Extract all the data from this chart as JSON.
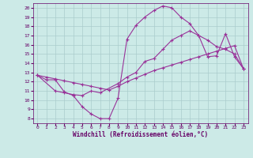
{
  "background_color": "#cceae7",
  "grid_color": "#aacccc",
  "line_color": "#993399",
  "xlabel": "Windchill (Refroidissement éolien,°C)",
  "xlim": [
    -0.5,
    23.5
  ],
  "ylim": [
    7.5,
    20.5
  ],
  "yticks": [
    8,
    9,
    10,
    11,
    12,
    13,
    14,
    15,
    16,
    17,
    18,
    19,
    20
  ],
  "xticks": [
    0,
    1,
    2,
    3,
    4,
    5,
    6,
    7,
    8,
    9,
    10,
    11,
    12,
    13,
    14,
    15,
    16,
    17,
    18,
    19,
    20,
    21,
    22,
    23
  ],
  "series1_x": [
    0,
    1,
    2,
    3,
    4,
    5,
    6,
    7,
    8,
    9,
    10,
    11,
    12,
    13,
    14,
    15,
    16,
    17,
    18,
    19,
    20,
    21,
    22,
    23
  ],
  "series1_y": [
    12.7,
    12.2,
    12.2,
    10.9,
    10.5,
    9.3,
    8.5,
    8.0,
    8.0,
    10.2,
    16.6,
    18.1,
    19.0,
    19.7,
    20.2,
    20.0,
    19.0,
    18.3,
    17.0,
    14.7,
    14.8,
    17.2,
    14.7,
    13.4
  ],
  "series2_x": [
    0,
    1,
    2,
    3,
    4,
    5,
    6,
    7,
    8,
    9,
    10,
    11,
    12,
    13,
    14,
    15,
    16,
    17,
    18,
    19,
    20,
    21,
    22,
    23
  ],
  "series2_y": [
    12.7,
    12.5,
    12.3,
    12.1,
    11.9,
    11.7,
    11.5,
    11.3,
    11.1,
    11.5,
    12.0,
    12.4,
    12.8,
    13.2,
    13.5,
    13.8,
    14.1,
    14.4,
    14.7,
    15.0,
    15.3,
    15.6,
    15.9,
    13.4
  ],
  "series3_x": [
    0,
    2,
    3,
    4,
    5,
    6,
    7,
    9,
    10,
    11,
    12,
    13,
    14,
    15,
    16,
    17,
    18,
    19,
    20,
    21,
    22,
    23
  ],
  "series3_y": [
    12.7,
    11.0,
    10.8,
    10.6,
    10.5,
    11.0,
    10.8,
    11.8,
    12.5,
    13.0,
    14.2,
    14.5,
    15.5,
    16.5,
    17.0,
    17.5,
    17.0,
    16.5,
    15.8,
    15.5,
    15.0,
    13.4
  ],
  "font_color": "#660066",
  "tick_font_size": 4.5,
  "label_font_size": 5.5
}
